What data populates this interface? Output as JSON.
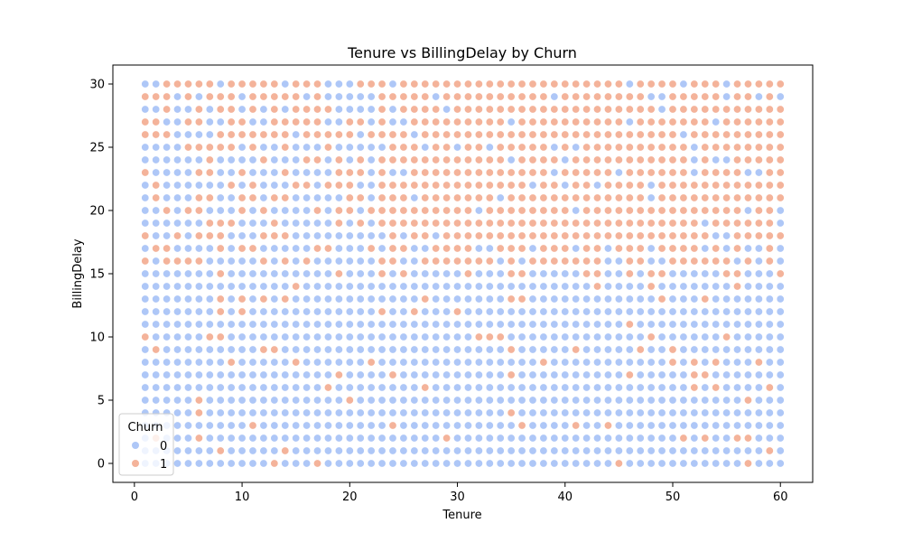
{
  "chart_data": {
    "type": "scatter",
    "title": "Tenure vs BillingDelay by Churn",
    "xlabel": "Tenure",
    "ylabel": "BillingDelay",
    "xlim": [
      -2,
      63
    ],
    "ylim": [
      -1.5,
      31.5
    ],
    "xticks": [
      0,
      10,
      20,
      30,
      40,
      50,
      60
    ],
    "yticks": [
      0,
      5,
      10,
      15,
      20,
      25,
      30
    ],
    "grid": false,
    "x_values": {
      "from": 1,
      "to": 60,
      "step": 1
    },
    "y_values": {
      "from": 0,
      "to": 30,
      "step": 1
    },
    "legend": {
      "title": "Churn",
      "placement": "lower-left",
      "entries": [
        {
          "label": "0",
          "color": "#aec7f7"
        },
        {
          "label": "1",
          "color": "#f4b39a"
        }
      ]
    },
    "series": [
      {
        "name": "0",
        "color": "#aec7f7",
        "description_of_pattern": "dominant for BillingDelay below about 15 and for early tenure at high delay"
      },
      {
        "name": "1",
        "color": "#f4b39a",
        "description_of_pattern": "dominant for BillingDelay above about 16 and tenure above about 23"
      }
    ]
  }
}
